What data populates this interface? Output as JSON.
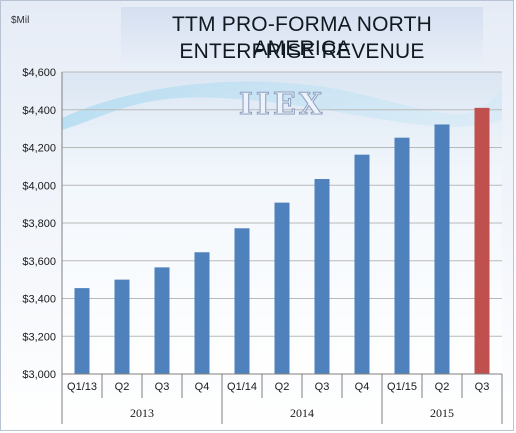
{
  "chart_data": {
    "type": "bar",
    "title_lines": [
      "TTM PRO-FORMA NORTH AMERICA",
      "ENTERPRISE REVENUE"
    ],
    "unit": "$Mil",
    "categories": [
      "Q1/13",
      "Q2",
      "Q3",
      "Q4",
      "Q1/14",
      "Q2",
      "Q3",
      "Q4",
      "Q1/15",
      "Q2",
      "Q3"
    ],
    "years": [
      {
        "label": "2013",
        "start": 0,
        "end": 3
      },
      {
        "label": "2014",
        "start": 4,
        "end": 7
      },
      {
        "label": "2015",
        "start": 8,
        "end": 10
      }
    ],
    "values": [
      3455,
      3500,
      3565,
      3645,
      3772,
      3908,
      4033,
      4162,
      4252,
      4322,
      4410
    ],
    "colors": [
      "#4f81bd",
      "#4f81bd",
      "#4f81bd",
      "#4f81bd",
      "#4f81bd",
      "#4f81bd",
      "#4f81bd",
      "#4f81bd",
      "#4f81bd",
      "#4f81bd",
      "#c0504d"
    ],
    "ylim": [
      3000,
      4600
    ],
    "ytick_values": [
      3000,
      3200,
      3400,
      3600,
      3800,
      4000,
      4200,
      4400,
      4600
    ],
    "ytick_labels": [
      "$3,000",
      "$3,200",
      "$3,400",
      "$3,600",
      "$3,800",
      "$4,000",
      "$4,200",
      "$4,400",
      "$4,600"
    ],
    "grid": "horizontal",
    "watermark": "IIEX"
  }
}
